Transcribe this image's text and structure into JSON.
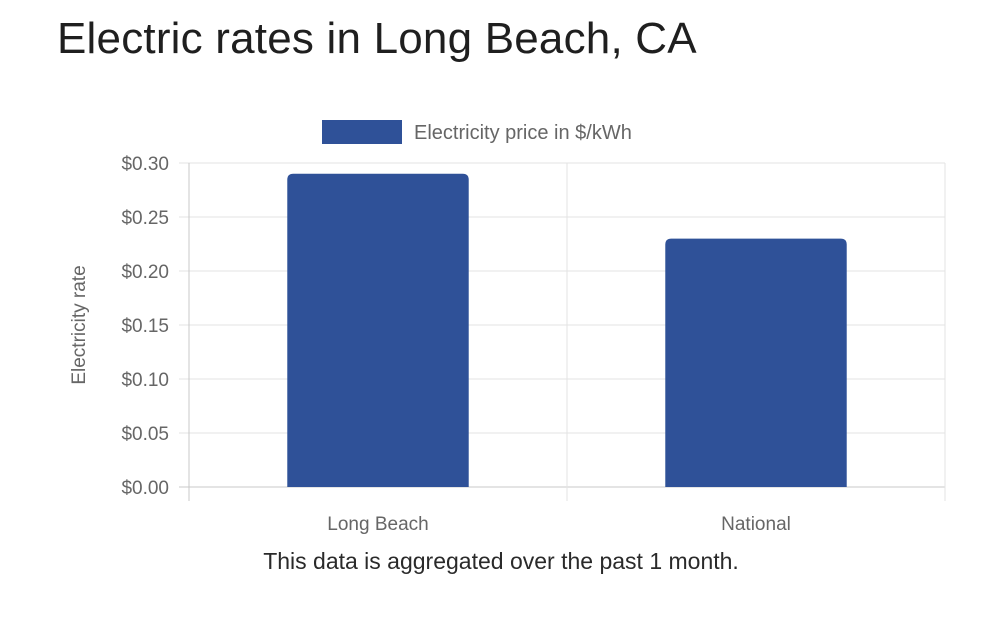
{
  "page": {
    "title": "Electric rates in Long Beach, CA",
    "caption": "This data is aggregated over the past 1 month."
  },
  "colors": {
    "bar": "#2f5198",
    "grid": "#e3e3e3",
    "axis_text": "#666666"
  },
  "chart_data": {
    "type": "bar",
    "categories": [
      "Long Beach",
      "National"
    ],
    "series": [
      {
        "name": "Electricity price in $/kWh",
        "values": [
          0.29,
          0.23
        ]
      }
    ],
    "xlabel": "",
    "ylabel": "Electricity rate",
    "ylim": [
      0,
      0.3
    ],
    "yticks": [
      "$0.00",
      "$0.05",
      "$0.10",
      "$0.15",
      "$0.20",
      "$0.25",
      "$0.30"
    ],
    "grid": true,
    "legend": "top-center"
  }
}
